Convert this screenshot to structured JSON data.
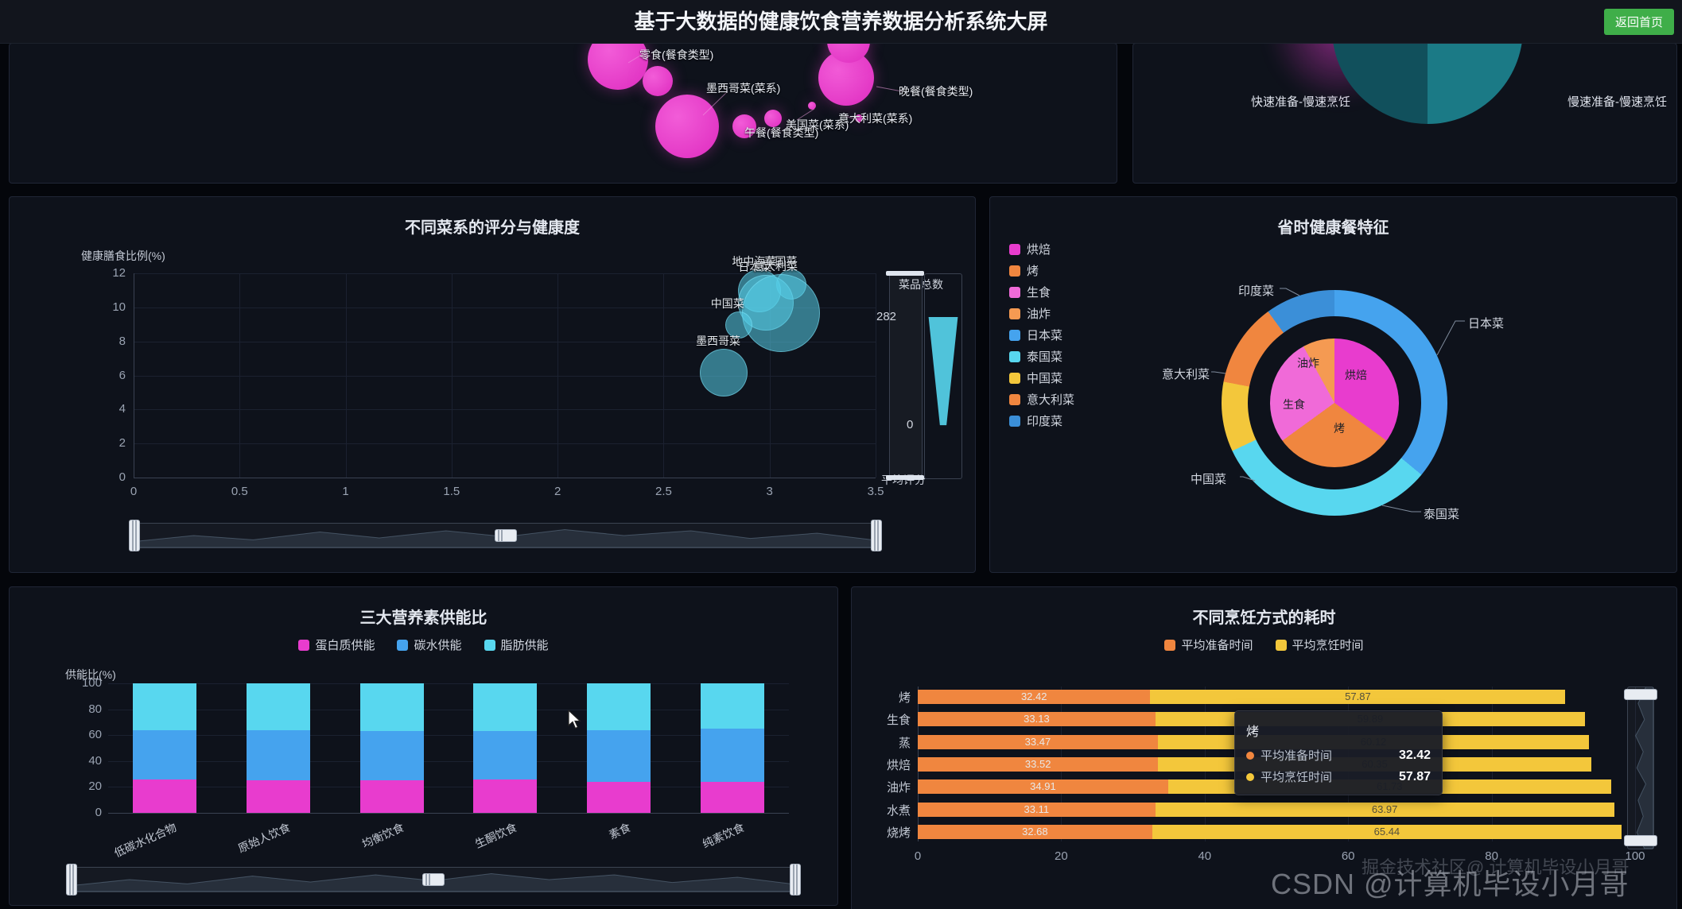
{
  "header": {
    "title": "基于大数据的健康饮食营养数据分析系统大屏",
    "back_button": "返回首页"
  },
  "colors": {
    "magenta": "#e83cce",
    "pink": "#f06ad8",
    "orange": "#f0863f",
    "orange_light": "#f59a52",
    "yellow": "#f3c73b",
    "blue": "#45a3ee",
    "blue_dark": "#3b8fd8",
    "cyan": "#58d7ef",
    "teal_dark": "#11505c",
    "teal_mid": "#1b7a86",
    "teal_light": "#25949f",
    "button_green": "#3fae49"
  },
  "watermarks": {
    "primary": "CSDN @计算机毕设小月哥",
    "secondary": "掘金技术社区@ 计算机毕设小月哥"
  },
  "chart_data": [
    {
      "type": "scatter",
      "title": "",
      "note": "bubble chart, partially cut by header",
      "labels": [
        "零食(餐食类型)",
        "墨西哥菜(菜系)",
        "晚餐(餐食类型)",
        "意大利菜(菜系)",
        "美国菜(菜系)",
        "午餐(餐食类型)"
      ]
    },
    {
      "type": "pie",
      "title": "",
      "note": "pie chart, partially cut by header",
      "labels": [
        "快速准备-慢速烹饪",
        "慢速准备-慢速烹饪"
      ]
    },
    {
      "type": "scatter",
      "title": "不同菜系的评分与健康度",
      "x_axis_name": "平均评分",
      "y_axis_name": "健康膳食比例(%)",
      "x_ticks": [
        "0",
        "0.5",
        "1",
        "1.5",
        "2",
        "2.5",
        "3",
        "3.5"
      ],
      "y_ticks": [
        0,
        2,
        4,
        6,
        8,
        10,
        12
      ],
      "xlim": [
        0,
        3.5
      ],
      "ylim": [
        0,
        12
      ],
      "visual_map": {
        "title": "菜品总数",
        "max": "282",
        "min": "0"
      },
      "points": [
        {
          "name": "泰国菜",
          "x": 3.1,
          "y": 11.4,
          "r": 18
        },
        {
          "name": "地中海菜",
          "x": 2.95,
          "y": 11.0,
          "r": 26
        },
        {
          "name": "日本菜",
          "x": 2.98,
          "y": 10.3,
          "r": 34
        },
        {
          "name": "意大利菜",
          "x": 3.05,
          "y": 9.7,
          "r": 48
        },
        {
          "name": "中国菜",
          "x": 2.85,
          "y": 9.0,
          "r": 16
        },
        {
          "name": "墨西哥菜",
          "x": 2.78,
          "y": 6.2,
          "r": 29
        }
      ]
    },
    {
      "type": "pie",
      "title": "省时健康餐特征",
      "legend": [
        "烘焙",
        "烤",
        "生食",
        "油炸",
        "日本菜",
        "泰国菜",
        "中国菜",
        "意大利菜",
        "印度菜"
      ],
      "outer_ring": [
        {
          "name": "日本菜",
          "value": 36
        },
        {
          "name": "泰国菜",
          "value": 32
        },
        {
          "name": "中国菜",
          "value": 10
        },
        {
          "name": "意大利菜",
          "value": 12
        },
        {
          "name": "印度菜",
          "value": 10
        }
      ],
      "inner_pie": [
        {
          "name": "烘焙",
          "value": 35
        },
        {
          "name": "烤",
          "value": 30
        },
        {
          "name": "生食",
          "value": 27
        },
        {
          "name": "油炸",
          "value": 8
        }
      ]
    },
    {
      "type": "bar",
      "title": "三大营养素供能比",
      "y_axis_name": "供能比(%)",
      "ylim": [
        0,
        100
      ],
      "y_ticks": [
        0,
        20,
        40,
        60,
        80,
        100
      ],
      "categories": [
        "低碳水化合物",
        "原始人饮食",
        "均衡饮食",
        "生酮饮食",
        "素食",
        "纯素饮食"
      ],
      "series": [
        {
          "name": "蛋白质供能",
          "values": [
            26,
            25,
            25,
            26,
            24,
            24
          ]
        },
        {
          "name": "碳水供能",
          "values": [
            38,
            39,
            38,
            37,
            40,
            41
          ]
        },
        {
          "name": "脂肪供能",
          "values": [
            36,
            36,
            37,
            37,
            36,
            35
          ]
        }
      ]
    },
    {
      "type": "bar",
      "title": "不同烹饪方式的耗时",
      "orientation": "horizontal",
      "legend": [
        "平均准备时间",
        "平均烹饪时间"
      ],
      "categories": [
        "烤",
        "生食",
        "蒸",
        "烘焙",
        "油炸",
        "水煮",
        "烧烤"
      ],
      "x_ticks": [
        0,
        20,
        40,
        60,
        80,
        100
      ],
      "xlim": [
        0,
        100
      ],
      "series": [
        {
          "name": "平均准备时间",
          "values": [
            32.42,
            33.13,
            33.47,
            33.52,
            34.91,
            33.11,
            32.68
          ]
        },
        {
          "name": "平均烹饪时间",
          "values": [
            57.87,
            59.89,
            60.12,
            60.35,
            61.73,
            63.97,
            65.44
          ]
        }
      ],
      "tooltip": {
        "title": "烤",
        "rows": [
          {
            "label": "平均准备时间",
            "value": "32.42"
          },
          {
            "label": "平均烹饪时间",
            "value": "57.87"
          }
        ]
      }
    }
  ]
}
